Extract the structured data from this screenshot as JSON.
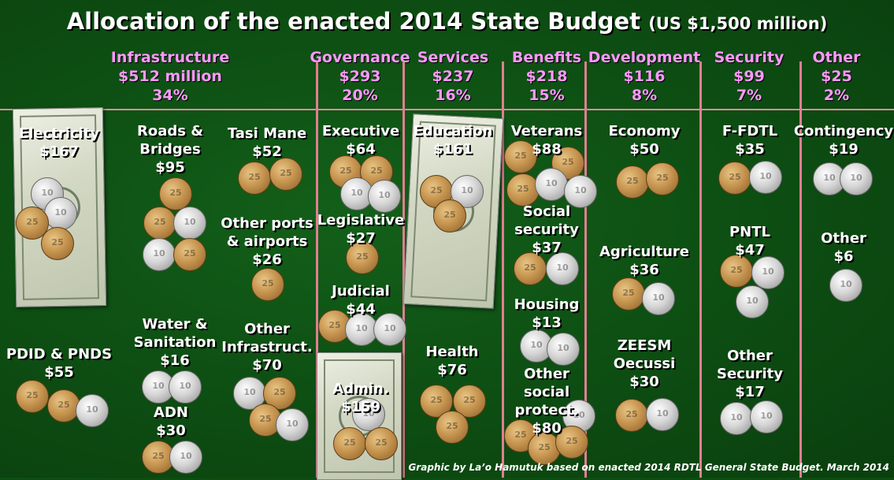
{
  "title": "Allocation of the enacted 2014 State Budget",
  "title_sub": "(US $1,500 million)",
  "colors": {
    "header_text": "#ff99ff",
    "divider": "#e07f92",
    "background": "#0d4d12"
  },
  "categories": [
    {
      "name": "Infrastructure",
      "amount": "$512 million",
      "percent": "34%"
    },
    {
      "name": "Governance",
      "amount": "$293",
      "percent": "20%"
    },
    {
      "name": "Services",
      "amount": "$237",
      "percent": "16%"
    },
    {
      "name": "Benefits",
      "amount": "$218",
      "percent": "15%"
    },
    {
      "name": "Development",
      "amount": "$116",
      "percent": "8%"
    },
    {
      "name": "Security",
      "amount": "$99",
      "percent": "7%"
    },
    {
      "name": "Other",
      "amount": "$25",
      "percent": "2%"
    }
  ],
  "items": [
    {
      "lines": [
        "Electricity",
        "$167"
      ]
    },
    {
      "lines": [
        "Roads &",
        "Bridges",
        "$95"
      ]
    },
    {
      "lines": [
        "Tasi Mane",
        "$52"
      ]
    },
    {
      "lines": [
        "Other ports",
        "& airports",
        "$26"
      ]
    },
    {
      "lines": [
        "PDID & PNDS",
        "$55"
      ]
    },
    {
      "lines": [
        "Water &",
        "Sanitation",
        "$16"
      ]
    },
    {
      "lines": [
        "ADN",
        "$30"
      ]
    },
    {
      "lines": [
        "Other",
        "Infrastruct.",
        "$70"
      ]
    },
    {
      "lines": [
        "Executive",
        "$64"
      ]
    },
    {
      "lines": [
        "Legislative",
        "$27"
      ]
    },
    {
      "lines": [
        "Judicial",
        "$44"
      ]
    },
    {
      "lines": [
        "Admin.",
        "$159"
      ]
    },
    {
      "lines": [
        "Education",
        "$161"
      ]
    },
    {
      "lines": [
        "Health",
        "$76"
      ]
    },
    {
      "lines": [
        "Veterans",
        "$88"
      ]
    },
    {
      "lines": [
        "Social",
        "security",
        "$37"
      ]
    },
    {
      "lines": [
        "Housing",
        "$13"
      ]
    },
    {
      "lines": [
        "Other",
        "social",
        "protect.",
        "$80"
      ]
    },
    {
      "lines": [
        "Economy",
        "$50"
      ]
    },
    {
      "lines": [
        "Agriculture",
        "$36"
      ]
    },
    {
      "lines": [
        "ZEESM",
        "Oecussi",
        "$30"
      ]
    },
    {
      "lines": [
        "F-FDTL",
        "$35"
      ]
    },
    {
      "lines": [
        "PNTL",
        "$47"
      ]
    },
    {
      "lines": [
        "Other",
        "Security",
        "$17"
      ]
    },
    {
      "lines": [
        "Contingency",
        "$19"
      ]
    },
    {
      "lines": [
        "Other",
        "$6"
      ]
    }
  ],
  "coin_labels": {
    "quarter": "25",
    "dime": "10"
  },
  "credit": "Graphic by La’o Hamutuk based on enacted 2014 RDTL General State Budget.   March 2014"
}
